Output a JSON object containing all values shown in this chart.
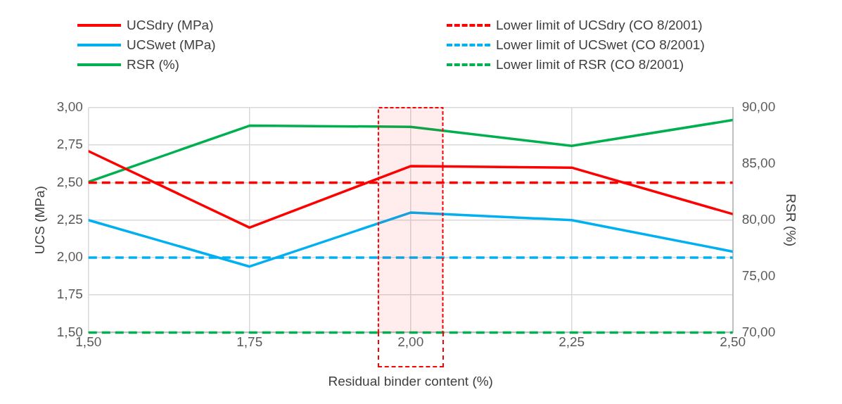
{
  "chart_data": {
    "type": "line",
    "xlabel": "Residual binder content (%)",
    "ylabel": "UCS (MPa)",
    "y2label": "RSR (%)",
    "x": [
      1.5,
      1.75,
      2.0,
      2.25,
      2.5
    ],
    "xlim": [
      1.5,
      2.5
    ],
    "xticks": [
      {
        "value": 1.5,
        "label": "1,50"
      },
      {
        "value": 1.75,
        "label": "1,75"
      },
      {
        "value": 2.0,
        "label": "2,00"
      },
      {
        "value": 2.25,
        "label": "2,25"
      },
      {
        "value": 2.5,
        "label": "2,50"
      }
    ],
    "ylim": [
      1.5,
      3.0
    ],
    "yticks": [
      {
        "value": 1.5,
        "label": "1,50"
      },
      {
        "value": 1.75,
        "label": "1,75"
      },
      {
        "value": 2.0,
        "label": "2,00"
      },
      {
        "value": 2.25,
        "label": "2,25"
      },
      {
        "value": 2.5,
        "label": "2,50"
      },
      {
        "value": 2.75,
        "label": "2,75"
      },
      {
        "value": 3.0,
        "label": "3,00"
      }
    ],
    "y2lim": [
      70,
      90
    ],
    "y2ticks": [
      {
        "value": 70,
        "label": "70,00"
      },
      {
        "value": 75,
        "label": "75,00"
      },
      {
        "value": 80,
        "label": "80,00"
      },
      {
        "value": 85,
        "label": "85,00"
      },
      {
        "value": 90,
        "label": "90,00"
      }
    ],
    "series": [
      {
        "name": "UCSdry (MPa)",
        "color": "#ff0000",
        "values": [
          2.71,
          2.2,
          2.61,
          2.6,
          2.29
        ]
      },
      {
        "name": "UCSwet (MPa)",
        "color": "#00b0f0",
        "values": [
          2.25,
          1.94,
          2.3,
          2.25,
          2.04
        ]
      },
      {
        "name": "RSR (%)",
        "color": "#00b050",
        "axis": "y2",
        "values": [
          83.4,
          88.4,
          88.3,
          86.6,
          88.9
        ]
      }
    ],
    "ref_lines": [
      {
        "axis": "y",
        "value": 2.5,
        "label": "Lower limit of UCSdry (CO 8/2001)",
        "color": "#ff0000",
        "line_style": "dashed"
      },
      {
        "axis": "y",
        "value": 2.0,
        "label": "Lower limit of UCSwet (CO 8/2001)",
        "color": "#00b0f0",
        "line_style": "dashed"
      },
      {
        "axis": "y2",
        "value": 70,
        "label": "Lower limit of RSR (CO 8/2001)",
        "color": "#00b050",
        "line_style": "dashed"
      }
    ],
    "bands": [
      {
        "axis": "x",
        "from": 1.95,
        "to": 2.05,
        "color": "#ff0000"
      }
    ],
    "grid": true,
    "legend": "top",
    "marker": "none",
    "line_style": "solid"
  }
}
